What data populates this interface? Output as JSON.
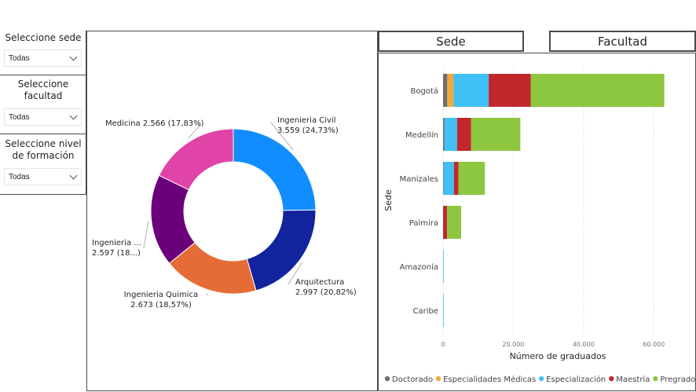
{
  "slicers": [
    {
      "title": "Seleccione sede",
      "value": "Todas"
    },
    {
      "title": "Seleccione facultad",
      "value": "Todas"
    },
    {
      "title": "Seleccione nivel de formación",
      "value": "Todas"
    }
  ],
  "tabs": {
    "sede": "Sede",
    "facultad": "Facultad"
  },
  "chart_data": [
    {
      "type": "pie",
      "donut": true,
      "slices": [
        {
          "label": "Ingenieria Civil",
          "value": 3559,
          "percent": 24.73,
          "color": "#118dff",
          "label_lines": [
            "Ingenieria Civil",
            "3.559 (24,73%)"
          ]
        },
        {
          "label": "Arquitectura",
          "value": 2997,
          "percent": 20.82,
          "color": "#12239e",
          "label_lines": [
            "Arquitectura",
            "2.997 (20,82%)"
          ]
        },
        {
          "label": "Ingenieria Quimica",
          "value": 2673,
          "percent": 18.57,
          "color": "#e66c37",
          "label_lines": [
            "Ingenieria Quimica",
            "2.673 (18,57%)"
          ]
        },
        {
          "label": "Ingenieria ...",
          "value": 2597,
          "percent": 18.05,
          "color": "#6b007b",
          "label_lines": [
            "Ingenieria ...",
            "2.597 (18...)"
          ]
        },
        {
          "label": "Medicina",
          "value": 2566,
          "percent": 17.83,
          "color": "#e044a7",
          "label_lines": [
            "Medicina 2.566 (17,83%)"
          ]
        }
      ]
    },
    {
      "type": "bar",
      "orientation": "horizontal",
      "stacked": true,
      "categories": [
        "Bogotá",
        "Medellín",
        "Manizales",
        "Palmira",
        "Amazonía",
        "Caribe"
      ],
      "series": [
        {
          "name": "Doctorado",
          "color": "#6e6e6e",
          "values": [
            1200,
            400,
            100,
            50,
            0,
            0
          ]
        },
        {
          "name": "Especialidades Médicas",
          "color": "#f2a93b",
          "values": [
            1800,
            0,
            0,
            0,
            0,
            0
          ]
        },
        {
          "name": "Especialización",
          "color": "#3fc1f5",
          "values": [
            10000,
            3600,
            3000,
            0,
            50,
            20
          ]
        },
        {
          "name": "Maestría",
          "color": "#c1272d",
          "values": [
            12000,
            4000,
            1300,
            1100,
            0,
            0
          ]
        },
        {
          "name": "Pregrado",
          "color": "#8dc63f",
          "values": [
            38000,
            14000,
            7500,
            4000,
            0,
            0
          ]
        }
      ],
      "xlabel": "Número de graduados",
      "ylabel": "Sede",
      "xlim": [
        0,
        68000
      ],
      "xticks": [
        0,
        20000,
        40000,
        60000
      ],
      "xtick_labels": [
        "0",
        "20.000",
        "40.000",
        "60.000"
      ],
      "grid": true,
      "legend": "bottom"
    }
  ]
}
